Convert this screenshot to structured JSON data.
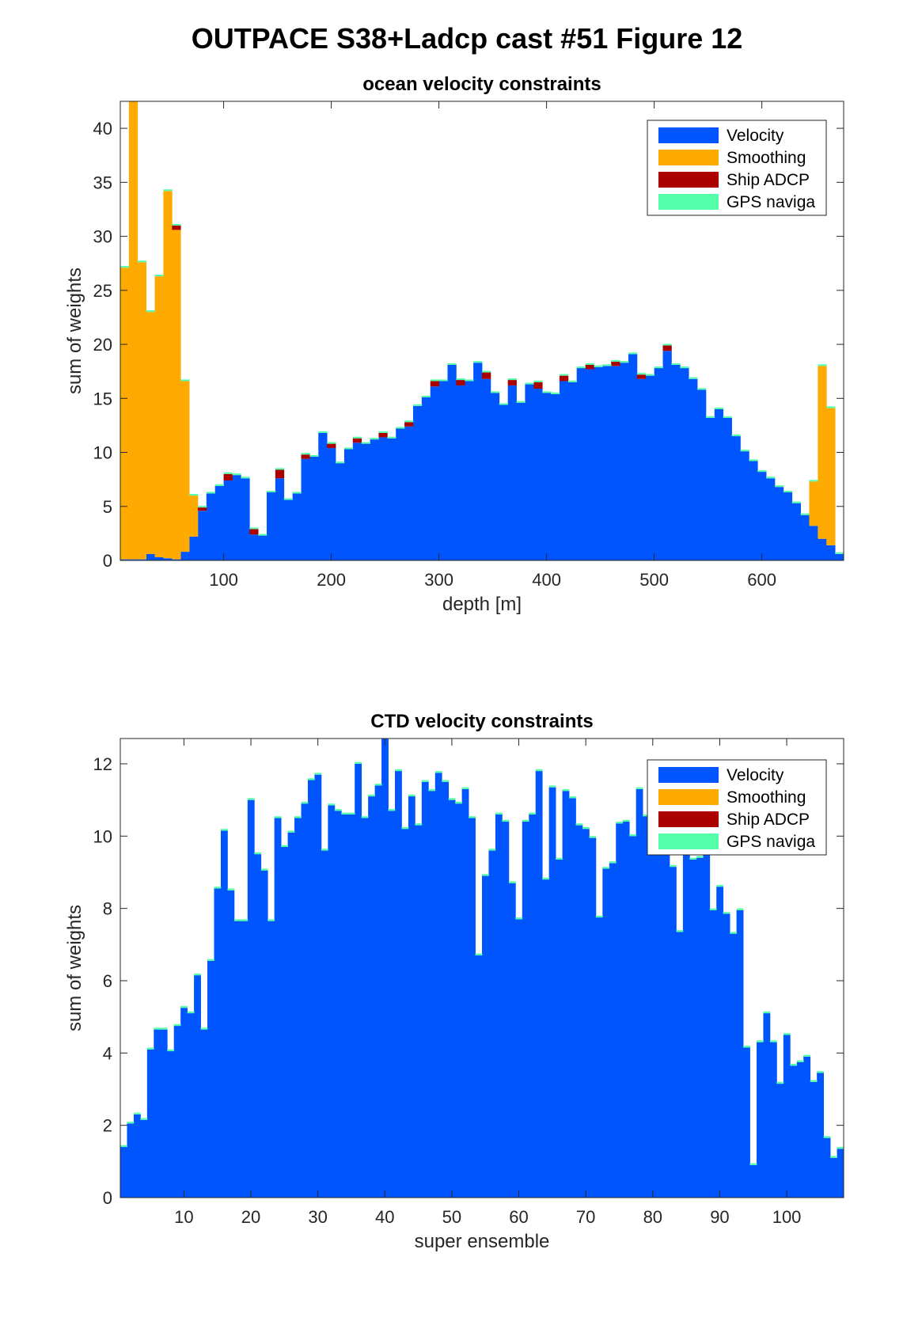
{
  "figure_title": "OUTPACE S38+Ladcp cast #51  Figure 12",
  "legend_items": [
    {
      "label": "Velocity",
      "color": "#0055FF"
    },
    {
      "label": "Smoothing",
      "color": "#FFAA00"
    },
    {
      "label": "Ship ADCP",
      "color": "#AA0000"
    },
    {
      "label": "GPS naviga",
      "color": "#55FFAA"
    }
  ],
  "chart_data": [
    {
      "type": "bar",
      "stacked": true,
      "title": "ocean velocity constraints",
      "xlabel": "depth [m]",
      "ylabel": "sum of weights",
      "xlim": [
        4,
        676
      ],
      "ylim": [
        0,
        42.5
      ],
      "xticks": [
        100,
        200,
        300,
        400,
        500,
        600
      ],
      "yticks": [
        0,
        5,
        10,
        15,
        20,
        25,
        30,
        35,
        40
      ],
      "grid": false,
      "legend_position": "top-right",
      "bin_width": 8,
      "x": [
        8,
        16,
        24,
        32,
        40,
        48,
        56,
        64,
        72,
        80,
        88,
        96,
        104,
        112,
        120,
        128,
        136,
        144,
        152,
        160,
        168,
        176,
        184,
        192,
        200,
        208,
        216,
        224,
        232,
        240,
        248,
        256,
        264,
        272,
        280,
        288,
        296,
        304,
        312,
        320,
        328,
        336,
        344,
        352,
        360,
        368,
        376,
        384,
        392,
        400,
        408,
        416,
        424,
        432,
        440,
        448,
        456,
        464,
        472,
        480,
        488,
        496,
        504,
        512,
        520,
        528,
        536,
        544,
        552,
        560,
        568,
        576,
        584,
        592,
        600,
        608,
        616,
        624,
        632,
        640,
        648,
        656,
        664,
        672
      ],
      "series": [
        {
          "name": "Velocity",
          "color": "#0055FF",
          "values": [
            0.1,
            0.1,
            0.1,
            0.6,
            0.3,
            0.2,
            0.1,
            0.8,
            2.2,
            4.6,
            6.2,
            6.9,
            7.4,
            7.9,
            7.6,
            2.4,
            2.3,
            6.3,
            7.6,
            5.6,
            6.2,
            9.4,
            9.6,
            11.8,
            10.4,
            9.0,
            10.3,
            10.9,
            10.8,
            11.2,
            11.4,
            11.3,
            12.2,
            12.4,
            14.3,
            15.1,
            16.1,
            16.6,
            18.1,
            16.2,
            16.6,
            18.3,
            16.8,
            15.5,
            14.4,
            16.2,
            14.6,
            16.3,
            15.9,
            15.5,
            15.4,
            16.6,
            16.5,
            17.8,
            17.7,
            17.9,
            18.0,
            18.0,
            18.3,
            19.1,
            16.8,
            17.1,
            17.8,
            19.4,
            18.1,
            17.8,
            16.8,
            15.8,
            13.2,
            14.0,
            13.2,
            11.5,
            10.1,
            9.2,
            8.2,
            7.6,
            6.8,
            6.3,
            5.3,
            4.2,
            3.2,
            2.0,
            1.4,
            0.6
          ]
        },
        {
          "name": "Smoothing",
          "color": "#FFAA00",
          "values": [
            27.0,
            42.5,
            27.5,
            22.4,
            26.0,
            34.0,
            30.5,
            15.8,
            3.8,
            0.0,
            0.0,
            0.0,
            0.0,
            0.0,
            0.0,
            0.0,
            0.0,
            0.0,
            0.0,
            0.0,
            0.0,
            0.0,
            0.0,
            0.0,
            0.0,
            0.0,
            0.0,
            0.0,
            0.0,
            0.0,
            0.0,
            0.0,
            0.0,
            0.0,
            0.0,
            0.0,
            0.0,
            0.0,
            0.0,
            0.0,
            0.0,
            0.0,
            0.0,
            0.0,
            0.0,
            0.0,
            0.0,
            0.0,
            0.0,
            0.0,
            0.0,
            0.0,
            0.0,
            0.0,
            0.0,
            0.0,
            0.0,
            0.0,
            0.0,
            0.0,
            0.0,
            0.0,
            0.0,
            0.0,
            0.0,
            0.0,
            0.0,
            0.0,
            0.0,
            0.0,
            0.0,
            0.0,
            0.0,
            0.0,
            0.0,
            0.0,
            0.0,
            0.0,
            0.0,
            0.0,
            4.1,
            16.0,
            12.7,
            0.0
          ]
        },
        {
          "name": "Ship ADCP",
          "color": "#AA0000",
          "values": [
            0.0,
            0.0,
            0.0,
            0.0,
            0.0,
            0.0,
            0.4,
            0.0,
            0.0,
            0.3,
            0.0,
            0.0,
            0.6,
            0.0,
            0.0,
            0.5,
            0.0,
            0.0,
            0.8,
            0.0,
            0.0,
            0.4,
            0.0,
            0.0,
            0.4,
            0.0,
            0.0,
            0.4,
            0.0,
            0.0,
            0.4,
            0.0,
            0.0,
            0.4,
            0.0,
            0.0,
            0.5,
            0.0,
            0.0,
            0.5,
            0.0,
            0.0,
            0.6,
            0.0,
            0.0,
            0.5,
            0.0,
            0.0,
            0.6,
            0.0,
            0.0,
            0.5,
            0.0,
            0.0,
            0.4,
            0.0,
            0.0,
            0.4,
            0.0,
            0.0,
            0.4,
            0.0,
            0.0,
            0.5,
            0.0,
            0.0,
            0.0,
            0.0,
            0.0,
            0.0,
            0.0,
            0.0,
            0.0,
            0.0,
            0.0,
            0.0,
            0.0,
            0.0,
            0.0,
            0.0,
            0.0,
            0.0,
            0.0,
            0.0
          ]
        },
        {
          "name": "GPS naviga",
          "color": "#55FFAA",
          "values": [
            0.15,
            0.15,
            0.15,
            0.15,
            0.15,
            0.15,
            0.15,
            0.15,
            0.15,
            0.15,
            0.15,
            0.15,
            0.15,
            0.15,
            0.15,
            0.15,
            0.15,
            0.15,
            0.15,
            0.15,
            0.15,
            0.15,
            0.15,
            0.15,
            0.15,
            0.15,
            0.15,
            0.15,
            0.15,
            0.15,
            0.15,
            0.15,
            0.15,
            0.15,
            0.15,
            0.15,
            0.15,
            0.15,
            0.15,
            0.15,
            0.15,
            0.15,
            0.15,
            0.15,
            0.15,
            0.15,
            0.15,
            0.15,
            0.15,
            0.15,
            0.15,
            0.15,
            0.15,
            0.15,
            0.15,
            0.15,
            0.15,
            0.15,
            0.15,
            0.15,
            0.15,
            0.15,
            0.15,
            0.15,
            0.15,
            0.15,
            0.15,
            0.15,
            0.15,
            0.15,
            0.15,
            0.15,
            0.15,
            0.15,
            0.15,
            0.15,
            0.15,
            0.15,
            0.15,
            0.15,
            0.15,
            0.15,
            0.15,
            0.15
          ]
        }
      ]
    },
    {
      "type": "bar",
      "stacked": true,
      "title": "CTD velocity constraints",
      "xlabel": "super ensemble",
      "ylabel": "sum of weights",
      "xlim": [
        0.5,
        108.5
      ],
      "ylim": [
        0,
        12.7
      ],
      "xticks": [
        10,
        20,
        30,
        40,
        50,
        60,
        70,
        80,
        90,
        100
      ],
      "yticks": [
        0,
        2,
        4,
        6,
        8,
        10,
        12
      ],
      "grid": false,
      "legend_position": "top-right",
      "bin_width": 1,
      "x": [
        1,
        2,
        3,
        4,
        5,
        6,
        7,
        8,
        9,
        10,
        11,
        12,
        13,
        14,
        15,
        16,
        17,
        18,
        19,
        20,
        21,
        22,
        23,
        24,
        25,
        26,
        27,
        28,
        29,
        30,
        31,
        32,
        33,
        34,
        35,
        36,
        37,
        38,
        39,
        40,
        41,
        42,
        43,
        44,
        45,
        46,
        47,
        48,
        49,
        50,
        51,
        52,
        53,
        54,
        55,
        56,
        57,
        58,
        59,
        60,
        61,
        62,
        63,
        64,
        65,
        66,
        67,
        68,
        69,
        70,
        71,
        72,
        73,
        74,
        75,
        76,
        77,
        78,
        79,
        80,
        81,
        82,
        83,
        84,
        85,
        86,
        87,
        88,
        89,
        90,
        91,
        92,
        93,
        94,
        95,
        96,
        97,
        98,
        99,
        100,
        101,
        102,
        103,
        104,
        105,
        106,
        107,
        108
      ],
      "series": [
        {
          "name": "Velocity",
          "color": "#0055FF",
          "values": [
            1.4,
            2.05,
            2.3,
            2.15,
            4.1,
            4.65,
            4.65,
            4.05,
            4.75,
            5.25,
            5.1,
            6.15,
            4.65,
            6.55,
            8.55,
            10.15,
            8.5,
            7.65,
            7.65,
            11.0,
            9.5,
            9.05,
            7.65,
            10.5,
            9.7,
            10.1,
            10.5,
            10.9,
            11.55,
            11.7,
            9.6,
            10.85,
            10.7,
            10.6,
            10.6,
            12.0,
            10.5,
            11.1,
            11.4,
            12.7,
            10.7,
            11.8,
            10.2,
            11.1,
            10.3,
            11.5,
            11.25,
            11.75,
            11.5,
            11.0,
            10.9,
            11.3,
            10.5,
            6.7,
            8.9,
            9.6,
            10.6,
            10.4,
            8.7,
            7.7,
            10.4,
            10.6,
            11.8,
            8.8,
            11.35,
            9.35,
            11.25,
            11.05,
            10.3,
            10.2,
            9.95,
            7.75,
            9.1,
            9.25,
            10.35,
            10.4,
            10.0,
            11.3,
            10.55,
            11.2,
            10.0,
            9.5,
            9.15,
            7.35,
            9.75,
            9.35,
            9.4,
            9.65,
            7.95,
            8.6,
            7.85,
            7.3,
            7.95,
            4.15,
            0.9,
            4.3,
            5.1,
            4.3,
            3.15,
            4.5,
            3.65,
            3.75,
            3.9,
            3.2,
            3.45,
            1.65,
            1.1,
            1.35
          ]
        },
        {
          "name": "GPS naviga",
          "color": "#55FFAA",
          "values": [
            0.05,
            0.05,
            0.05,
            0.05,
            0.05,
            0.05,
            0.05,
            0.05,
            0.05,
            0.05,
            0.05,
            0.05,
            0.05,
            0.05,
            0.05,
            0.05,
            0.05,
            0.05,
            0.05,
            0.05,
            0.05,
            0.05,
            0.05,
            0.05,
            0.05,
            0.05,
            0.05,
            0.05,
            0.05,
            0.05,
            0.05,
            0.05,
            0.05,
            0.05,
            0.05,
            0.05,
            0.05,
            0.05,
            0.05,
            0.05,
            0.05,
            0.05,
            0.05,
            0.05,
            0.05,
            0.05,
            0.05,
            0.05,
            0.05,
            0.05,
            0.05,
            0.05,
            0.05,
            0.05,
            0.05,
            0.05,
            0.05,
            0.05,
            0.05,
            0.05,
            0.05,
            0.05,
            0.05,
            0.05,
            0.05,
            0.05,
            0.05,
            0.05,
            0.05,
            0.05,
            0.05,
            0.05,
            0.05,
            0.05,
            0.05,
            0.05,
            0.05,
            0.05,
            0.05,
            0.05,
            0.05,
            0.05,
            0.05,
            0.05,
            0.05,
            0.05,
            0.05,
            0.05,
            0.05,
            0.05,
            0.05,
            0.05,
            0.05,
            0.05,
            0.05,
            0.05,
            0.05,
            0.05,
            0.05,
            0.05,
            0.05,
            0.05,
            0.05,
            0.05,
            0.05,
            0.05,
            0.05,
            0.05
          ]
        }
      ]
    }
  ]
}
